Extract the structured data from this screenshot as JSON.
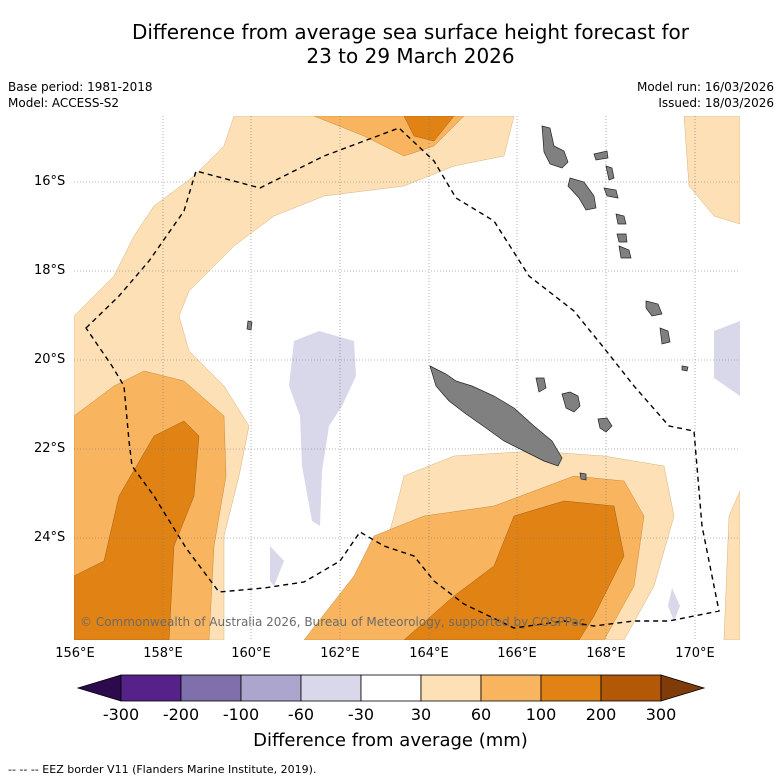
{
  "title": {
    "line1": "Difference from average sea surface height forecast for",
    "line2": "23 to 29 March 2026"
  },
  "meta": {
    "base_period": "Base period: 1981-2018",
    "model": "Model: ACCESS-S2",
    "model_run": "Model run: 16/03/2026",
    "issued": "Issued: 18/03/2026"
  },
  "map": {
    "latitude_labels": [
      "16°S",
      "18°S",
      "20°S",
      "22°S",
      "24°S"
    ],
    "longitude_labels": [
      "156°E",
      "158°E",
      "160°E",
      "162°E",
      "164°E",
      "166°E",
      "168°E",
      "170°E"
    ],
    "copyright": "© Commonwealth of Australia 2026, Bureau of Meteorology, supported by COSPPac",
    "land_color": "#808080",
    "border_style": "dashed"
  },
  "colorbar": {
    "title": "Difference from average (mm)",
    "tick_labels": [
      "-300",
      "-200",
      "-100",
      "-60",
      "-30",
      "30",
      "60",
      "100",
      "200",
      "300"
    ],
    "colors": {
      "below": "#2d0a4e",
      "bins": [
        "#55228a",
        "#7f6fab",
        "#aca6cf",
        "#d8d8ea",
        "#ffffff",
        "#fde0b6",
        "#f9b45f",
        "#e08214",
        "#b35806"
      ],
      "above": "#7f3b08"
    }
  },
  "footer": {
    "legend_text": "--  --  -- EEZ border V11 (Flanders Marine Institute, 2019)."
  }
}
